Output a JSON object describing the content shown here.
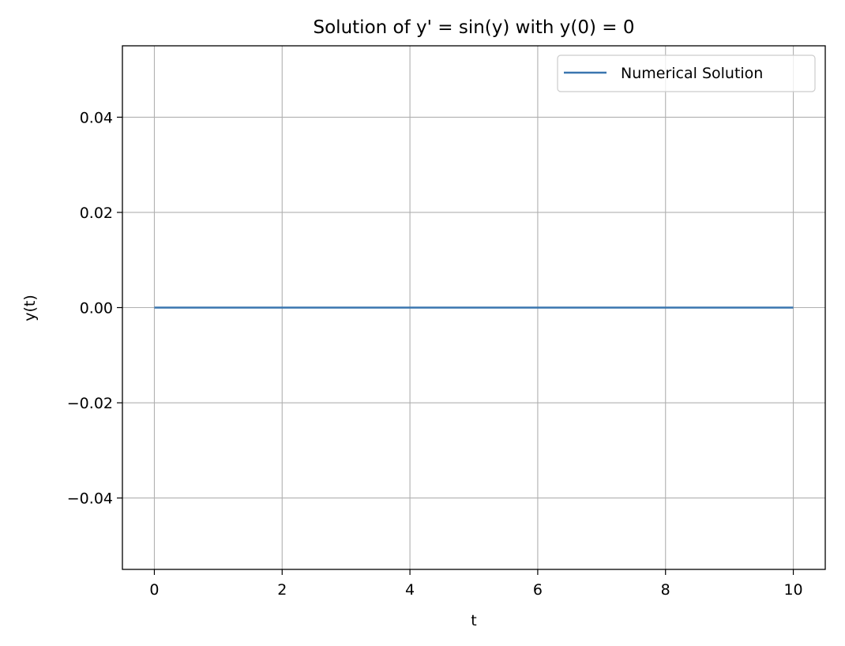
{
  "chart_data": {
    "type": "line",
    "title": "Solution of y' = sin(y) with y(0) = 0",
    "xlabel": "t",
    "ylabel": "y(t)",
    "xlim": [
      -0.5,
      10.5
    ],
    "ylim": [
      -0.055,
      0.055
    ],
    "xticks": [
      0,
      2,
      4,
      6,
      8,
      10
    ],
    "xtick_labels": [
      "0",
      "2",
      "4",
      "6",
      "8",
      "10"
    ],
    "yticks": [
      -0.04,
      -0.02,
      0.0,
      0.02,
      0.04
    ],
    "ytick_labels": [
      "−0.04",
      "−0.02",
      "0.00",
      "0.02",
      "0.04"
    ],
    "grid": true,
    "legend_position": "top-right",
    "series": [
      {
        "name": "Numerical Solution",
        "color": "#3a76af",
        "x": [
          0,
          1,
          2,
          3,
          4,
          5,
          6,
          7,
          8,
          9,
          10
        ],
        "y": [
          0,
          0,
          0,
          0,
          0,
          0,
          0,
          0,
          0,
          0,
          0
        ]
      }
    ]
  }
}
